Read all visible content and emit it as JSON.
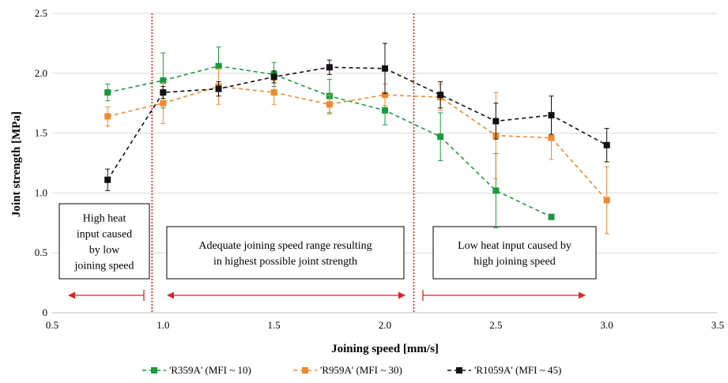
{
  "chart_data": {
    "type": "line",
    "xlabel": "Joining speed [mm/s]",
    "ylabel": "Joint strength [MPa]",
    "xlim": [
      0.5,
      3.5
    ],
    "ylim": [
      0,
      2.5
    ],
    "x_ticks": [
      "0.5",
      "1.0",
      "1.5",
      "2.0",
      "2.5",
      "3.0",
      "3.5"
    ],
    "y_ticks": [
      "0",
      "0.5",
      "1.0",
      "1.5",
      "2.0",
      "2.5"
    ],
    "grid": "horizontal",
    "legend_position": "bottom",
    "series": [
      {
        "name": "'R359A' (MFI ~ 10)",
        "color": "#1a9a3c",
        "x": [
          0.75,
          1.0,
          1.25,
          1.5,
          1.75,
          2.0,
          2.25,
          2.5,
          2.75
        ],
        "y": [
          1.84,
          1.94,
          2.06,
          1.99,
          1.81,
          1.69,
          1.47,
          1.02,
          0.8
        ],
        "err": [
          0.07,
          0.23,
          0.16,
          0.1,
          0.14,
          0.12,
          0.2,
          0.31,
          0.02
        ]
      },
      {
        "name": "'R959A' (MFI ~ 30)",
        "color": "#f08a30",
        "x": [
          0.75,
          1.0,
          1.25,
          1.5,
          1.75,
          2.0,
          2.25,
          2.5,
          2.75,
          3.0
        ],
        "y": [
          1.64,
          1.75,
          1.89,
          1.84,
          1.74,
          1.82,
          1.8,
          1.48,
          1.46,
          0.94
        ],
        "err": [
          0.08,
          0.17,
          0.15,
          0.1,
          0.08,
          0.09,
          0.11,
          0.36,
          0.18,
          0.28
        ]
      },
      {
        "name": "'R1059A' (MFI ~ 45)",
        "color": "#111111",
        "x": [
          0.75,
          1.0,
          1.25,
          1.5,
          1.75,
          2.0,
          2.25,
          2.5,
          2.75,
          3.0
        ],
        "y": [
          1.11,
          1.84,
          1.87,
          1.97,
          2.05,
          2.04,
          1.82,
          1.6,
          1.65,
          1.4
        ],
        "err": [
          0.09,
          0.05,
          0.06,
          0.05,
          0.06,
          0.21,
          0.11,
          0.15,
          0.16,
          0.14
        ]
      }
    ],
    "vlines": [
      0.95,
      2.13
    ],
    "annotations": [
      {
        "lines": [
          "High heat",
          "input caused",
          "by low",
          "joining speed"
        ]
      },
      {
        "lines": [
          "Adequate joining speed range resulting",
          "in highest possible joint strength"
        ]
      },
      {
        "lines": [
          "Low heat input caused by",
          "high joining speed"
        ]
      }
    ]
  }
}
